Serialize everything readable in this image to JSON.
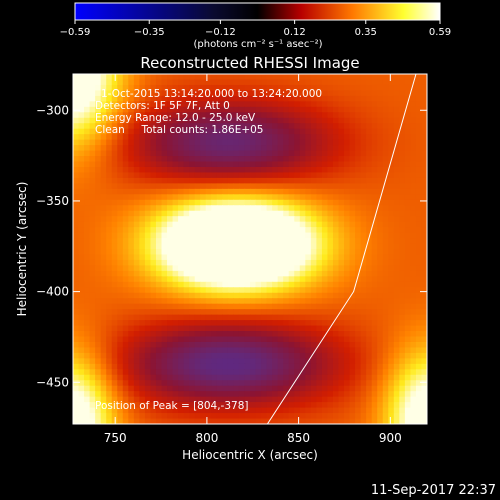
{
  "chart_data": {
    "type": "heatmap",
    "title": "Reconstructed RHESSI Image",
    "xlabel": "Heliocentric X (arcsec)",
    "ylabel": "Heliocentric Y (arcsec)",
    "xlim": [
      727,
      920
    ],
    "ylim": [
      -473,
      -280
    ],
    "x_ticks": [
      750,
      800,
      850,
      900
    ],
    "y_ticks": [
      -300,
      -350,
      -400,
      -450
    ],
    "x_tick_labels": [
      "750",
      "800",
      "850",
      "900"
    ],
    "y_tick_labels": [
      "−300",
      "−350",
      "−400",
      "−450"
    ],
    "colorbar": {
      "min": -0.59,
      "max": 0.59,
      "ticks": [
        -0.59,
        -0.35,
        -0.12,
        0.12,
        0.35,
        0.59
      ],
      "tick_labels": [
        "−0.59",
        "−0.35",
        "−0.12",
        "0.12",
        "0.35",
        "0.59"
      ],
      "unit_label": "(photons cm⁻² s⁻¹ asec⁻²)",
      "colors": [
        "#0000ff",
        "#000000",
        "#c80000",
        "#ff7800",
        "#ffff00",
        "#ffffff"
      ]
    },
    "annotations": [
      "1-Oct-2015 13:14:20.000 to 13:24:20.000",
      "Detectors: 1F 5F 7F, Att 0",
      "Energy Range: 12.0 - 25.0 keV",
      "Clean     Total counts: 1.86E+05",
      "Position of Peak = [804,-378]"
    ],
    "peak": {
      "x": 804,
      "y": -378
    },
    "source_center": {
      "x": 816,
      "y": -374
    },
    "limb_line": [
      [
        833,
        -473
      ],
      [
        880,
        -400
      ],
      [
        914,
        -280
      ]
    ],
    "footer_timestamp": "11-Sep-2017 22:37"
  }
}
